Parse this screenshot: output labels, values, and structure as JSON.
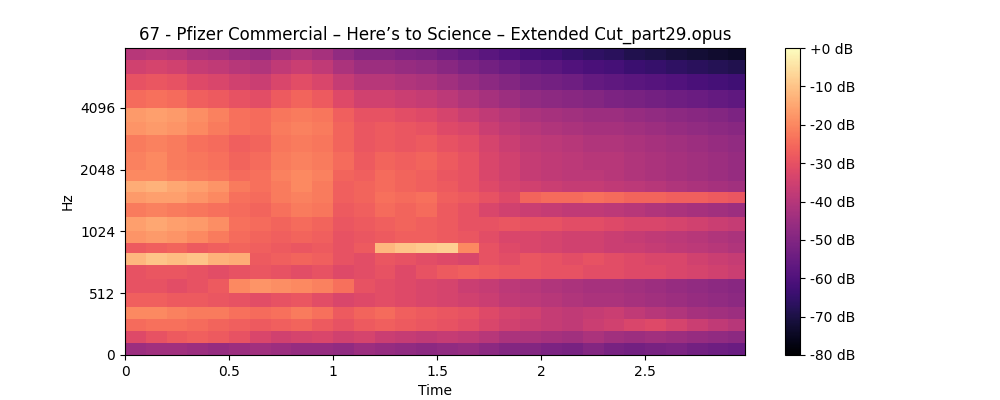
{
  "chart_data": {
    "type": "heatmap",
    "title": "67 - Pfizer Commercial – Here’s to Science – Extended Cut_part29.opus",
    "xlabel": "Time",
    "ylabel": "Hz",
    "color": "magma",
    "log": "y",
    "xlim": [
      0,
      2.98
    ],
    "ylim": [
      0,
      8000
    ],
    "xticks": [
      0,
      0.5,
      1,
      1.5,
      2,
      2.5
    ],
    "yticks": [
      0,
      512,
      1024,
      2048,
      4096
    ],
    "x_edges": [
      0,
      0.1,
      0.2,
      0.3,
      0.4,
      0.5,
      0.6,
      0.7,
      0.8,
      0.9,
      1.0,
      1.1,
      1.2,
      1.3,
      1.4,
      1.5,
      1.6,
      1.7,
      1.8,
      1.9,
      2.0,
      2.1,
      2.2,
      2.3,
      2.4,
      2.5,
      2.6,
      2.7,
      2.8,
      2.9,
      2.98
    ],
    "y_edges": [
      0,
      100,
      200,
      300,
      400,
      512,
      600,
      700,
      800,
      900,
      1024,
      1200,
      1400,
      1600,
      1800,
      2048,
      2500,
      3000,
      3500,
      4096,
      5000,
      6000,
      7000,
      8000
    ],
    "cells": [
      [
        -45,
        -44,
        -44,
        -45,
        -46,
        -45,
        -44,
        -45,
        -46,
        -46,
        -47,
        -45,
        -46,
        -47,
        -48,
        -47,
        -46,
        -48,
        -50,
        -50,
        -51,
        -52,
        -50,
        -52,
        -53,
        -52,
        -51,
        -53,
        -54,
        -55
      ],
      [
        -32,
        -30,
        -28,
        -27,
        -28,
        -30,
        -33,
        -35,
        -34,
        -33,
        -35,
        -34,
        -36,
        -37,
        -38,
        -37,
        -38,
        -40,
        -42,
        -42,
        -43,
        -44,
        -42,
        -44,
        -45,
        -44,
        -45,
        -46,
        -47,
        -48
      ],
      [
        -25,
        -24,
        -24,
        -25,
        -26,
        -27,
        -28,
        -27,
        -26,
        -28,
        -30,
        -28,
        -27,
        -28,
        -29,
        -30,
        -31,
        -33,
        -35,
        -36,
        -37,
        -38,
        -36,
        -35,
        -33,
        -32,
        -34,
        -36,
        -38,
        -40
      ],
      [
        -20,
        -20,
        -21,
        -22,
        -22,
        -24,
        -25,
        -24,
        -22,
        -24,
        -28,
        -26,
        -25,
        -27,
        -28,
        -29,
        -30,
        -32,
        -34,
        -35,
        -37,
        -38,
        -37,
        -36,
        -38,
        -40,
        -41,
        -43,
        -44,
        -45
      ],
      [
        -27,
        -27,
        -28,
        -28,
        -29,
        -30,
        -31,
        -30,
        -29,
        -31,
        -33,
        -32,
        -31,
        -32,
        -33,
        -34,
        -35,
        -36,
        -38,
        -39,
        -40,
        -41,
        -42,
        -42,
        -43,
        -44,
        -45,
        -46,
        -47,
        -48
      ],
      [
        -30,
        -30,
        -31,
        -30,
        -28,
        -20,
        -18,
        -19,
        -20,
        -21,
        -24,
        -30,
        -31,
        -32,
        -33,
        -34,
        -36,
        -37,
        -39,
        -40,
        -41,
        -42,
        -43,
        -43,
        -44,
        -45,
        -46,
        -47,
        -48,
        -49
      ],
      [
        -30,
        -29,
        -29,
        -30,
        -31,
        -30,
        -29,
        -30,
        -31,
        -30,
        -32,
        -31,
        -30,
        -32,
        -30,
        -28,
        -27,
        -28,
        -29,
        -29,
        -30,
        -30,
        -31,
        -31,
        -32,
        -32,
        -33,
        -34,
        -35,
        -36
      ],
      [
        -12,
        -10,
        -11,
        -10,
        -13,
        -14,
        -28,
        -27,
        -26,
        -27,
        -30,
        -31,
        -29,
        -30,
        -31,
        -32,
        -33,
        -30,
        -31,
        -29,
        -30,
        -31,
        -30,
        -31,
        -32,
        -33,
        -33,
        -35,
        -36,
        -37
      ],
      [
        -28,
        -27,
        -26,
        -28,
        -27,
        -26,
        -27,
        -28,
        -29,
        -28,
        -30,
        -28,
        -12,
        -10,
        -9,
        -8,
        -20,
        -30,
        -32,
        -33,
        -34,
        -35,
        -35,
        -36,
        -36,
        -37,
        -38,
        -39,
        -40,
        -41
      ],
      [
        -18,
        -17,
        -18,
        -20,
        -22,
        -25,
        -26,
        -27,
        -26,
        -27,
        -30,
        -29,
        -28,
        -27,
        -27,
        -28,
        -29,
        -31,
        -33,
        -33,
        -34,
        -35,
        -35,
        -36,
        -37,
        -38,
        -39,
        -40,
        -41,
        -42
      ],
      [
        -16,
        -15,
        -16,
        -17,
        -19,
        -24,
        -25,
        -26,
        -25,
        -26,
        -29,
        -28,
        -27,
        -26,
        -27,
        -28,
        -30,
        -30,
        -29,
        -30,
        -30,
        -31,
        -31,
        -32,
        -33,
        -33,
        -34,
        -35,
        -36,
        -37
      ],
      [
        -22,
        -21,
        -22,
        -23,
        -24,
        -25,
        -26,
        -24,
        -22,
        -23,
        -28,
        -27,
        -25,
        -26,
        -25,
        -28,
        -30,
        -33,
        -35,
        -36,
        -37,
        -38,
        -38,
        -39,
        -40,
        -41,
        -42,
        -43,
        -44,
        -45
      ],
      [
        -17,
        -16,
        -16,
        -18,
        -20,
        -24,
        -25,
        -22,
        -21,
        -22,
        -27,
        -26,
        -24,
        -25,
        -24,
        -27,
        -28,
        -30,
        -32,
        -26,
        -25,
        -25,
        -24,
        -25,
        -26,
        -26,
        -27,
        -27,
        -28,
        -29
      ],
      [
        -14,
        -13,
        -15,
        -16,
        -18,
        -22,
        -24,
        -22,
        -20,
        -22,
        -27,
        -26,
        -25,
        -26,
        -27,
        -28,
        -30,
        -32,
        -34,
        -35,
        -36,
        -37,
        -37,
        -38,
        -39,
        -40,
        -41,
        -42,
        -43,
        -44
      ],
      [
        -20,
        -20,
        -21,
        -22,
        -23,
        -25,
        -24,
        -21,
        -20,
        -21,
        -26,
        -27,
        -25,
        -26,
        -27,
        -29,
        -30,
        -33,
        -35,
        -37,
        -38,
        -39,
        -39,
        -40,
        -41,
        -42,
        -43,
        -44,
        -45,
        -46
      ],
      [
        -21,
        -20,
        -22,
        -23,
        -24,
        -26,
        -25,
        -22,
        -21,
        -22,
        -25,
        -28,
        -26,
        -27,
        -26,
        -28,
        -30,
        -33,
        -35,
        -37,
        -38,
        -39,
        -40,
        -40,
        -41,
        -42,
        -43,
        -44,
        -45,
        -46
      ],
      [
        -22,
        -21,
        -22,
        -24,
        -25,
        -27,
        -26,
        -23,
        -22,
        -23,
        -26,
        -29,
        -28,
        -29,
        -28,
        -30,
        -31,
        -34,
        -36,
        -38,
        -39,
        -40,
        -41,
        -41,
        -42,
        -43,
        -44,
        -45,
        -46,
        -47
      ],
      [
        -18,
        -17,
        -18,
        -20,
        -22,
        -24,
        -25,
        -22,
        -21,
        -22,
        -26,
        -29,
        -28,
        -29,
        -30,
        -32,
        -33,
        -36,
        -38,
        -40,
        -41,
        -42,
        -43,
        -43,
        -44,
        -45,
        -46,
        -47,
        -48,
        -49
      ],
      [
        -17,
        -16,
        -17,
        -19,
        -21,
        -24,
        -25,
        -23,
        -22,
        -23,
        -27,
        -30,
        -30,
        -31,
        -32,
        -34,
        -36,
        -38,
        -40,
        -42,
        -43,
        -44,
        -45,
        -45,
        -46,
        -47,
        -48,
        -49,
        -50,
        -51
      ],
      [
        -25,
        -24,
        -25,
        -27,
        -28,
        -30,
        -31,
        -28,
        -26,
        -28,
        -32,
        -35,
        -35,
        -36,
        -37,
        -39,
        -41,
        -43,
        -45,
        -47,
        -48,
        -49,
        -50,
        -51,
        -52,
        -53,
        -54,
        -55,
        -56,
        -57
      ],
      [
        -30,
        -29,
        -30,
        -32,
        -33,
        -35,
        -36,
        -33,
        -31,
        -33,
        -37,
        -40,
        -40,
        -41,
        -42,
        -44,
        -46,
        -48,
        -50,
        -52,
        -53,
        -54,
        -56,
        -57,
        -58,
        -59,
        -60,
        -61,
        -62,
        -63
      ],
      [
        -35,
        -34,
        -35,
        -37,
        -38,
        -40,
        -41,
        -38,
        -36,
        -38,
        -42,
        -45,
        -45,
        -46,
        -47,
        -49,
        -51,
        -53,
        -55,
        -57,
        -58,
        -60,
        -61,
        -62,
        -64,
        -65,
        -66,
        -67,
        -68,
        -69
      ],
      [
        -40,
        -39,
        -40,
        -42,
        -43,
        -45,
        -46,
        -43,
        -41,
        -43,
        -47,
        -50,
        -50,
        -51,
        -52,
        -54,
        -56,
        -58,
        -60,
        -62,
        -63,
        -65,
        -66,
        -67,
        -69,
        -70,
        -71,
        -72,
        -73,
        -74
      ]
    ],
    "colorbar_lim": [
      -80,
      0
    ],
    "colorbar_ticks": [
      {
        "value": 0,
        "label": "+0 dB"
      },
      {
        "value": -10,
        "label": "-10 dB"
      },
      {
        "value": -20,
        "label": "-20 dB"
      },
      {
        "value": -30,
        "label": "-30 dB"
      },
      {
        "value": -40,
        "label": "-40 dB"
      },
      {
        "value": -50,
        "label": "-50 dB"
      },
      {
        "value": -60,
        "label": "-60 dB"
      },
      {
        "value": -70,
        "label": "-70 dB"
      },
      {
        "value": -80,
        "label": "-80 dB"
      }
    ]
  }
}
